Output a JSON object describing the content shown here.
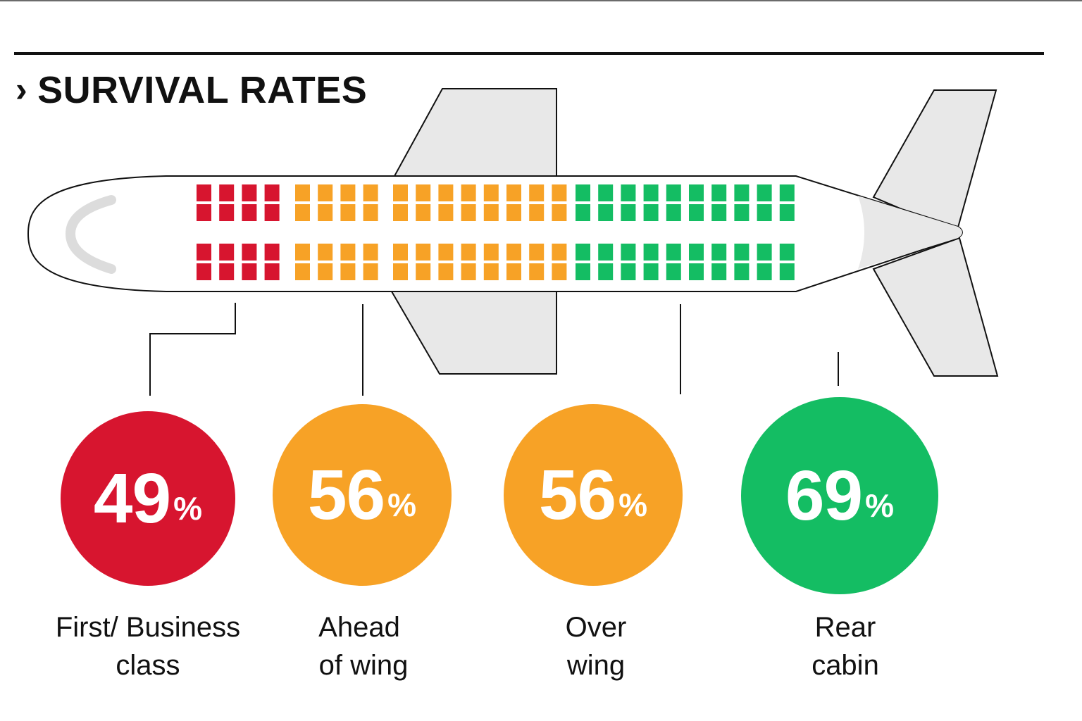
{
  "title": "SURVIVAL RATES",
  "chevron": "›",
  "colors": {
    "first_business": "#d7152f",
    "ahead_of_wing": "#f7a226",
    "over_wing": "#f7a226",
    "rear_cabin": "#14bd63"
  },
  "sections": [
    {
      "key": "first_business",
      "value": "49",
      "unit": "%",
      "label_line1": "First/ Business",
      "label_line2": "class",
      "color": "#d7152f"
    },
    {
      "key": "ahead_of_wing",
      "value": "56",
      "unit": "%",
      "label_line1": "Ahead",
      "label_line2": "of wing",
      "color": "#f7a226"
    },
    {
      "key": "over_wing",
      "value": "56",
      "unit": "%",
      "label_line1": "Over",
      "label_line2": "wing",
      "color": "#f7a226"
    },
    {
      "key": "rear_cabin",
      "value": "69",
      "unit": "%",
      "label_line1": "Rear",
      "label_line2": "cabin",
      "color": "#14bd63"
    }
  ]
}
